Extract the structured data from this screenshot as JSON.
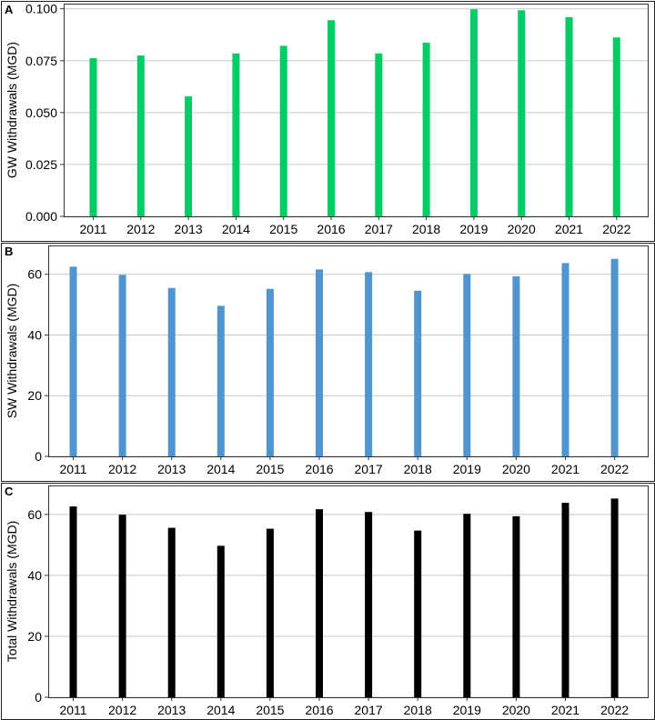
{
  "chart_data": [
    {
      "type": "bar",
      "panel_label": "A",
      "ylabel": "GW Withdrawals (MGD)",
      "categories": [
        "2011",
        "2012",
        "2013",
        "2014",
        "2015",
        "2016",
        "2017",
        "2018",
        "2019",
        "2020",
        "2021",
        "2022"
      ],
      "values": [
        0.0762,
        0.0775,
        0.0578,
        0.0785,
        0.0822,
        0.0945,
        0.0785,
        0.0837,
        0.0998,
        0.0993,
        0.096,
        0.0862
      ],
      "ylim": [
        0,
        0.1025
      ],
      "yticks": [
        0,
        0.025,
        0.05,
        0.075,
        0.1
      ],
      "ytick_labels": [
        "0.000",
        "0.025",
        "0.050",
        "0.075",
        "0.100"
      ],
      "grid": true,
      "color": "#00cc66"
    },
    {
      "type": "bar",
      "panel_label": "B",
      "ylabel": "SW Withdrawals (MGD)",
      "categories": [
        "2011",
        "2012",
        "2013",
        "2014",
        "2015",
        "2016",
        "2017",
        "2018",
        "2019",
        "2020",
        "2021",
        "2022"
      ],
      "values": [
        62.5,
        59.8,
        55.5,
        49.6,
        55.2,
        61.6,
        60.7,
        54.6,
        60.1,
        59.3,
        63.7,
        65.1
      ],
      "ylim": [
        0,
        69.5
      ],
      "yticks": [
        0,
        20,
        40,
        60
      ],
      "ytick_labels": [
        "0",
        "20",
        "40",
        "60"
      ],
      "grid": true,
      "color": "#5095cf"
    },
    {
      "type": "bar",
      "panel_label": "C",
      "ylabel": "Total Withdrawals (MGD)",
      "categories": [
        "2011",
        "2012",
        "2013",
        "2014",
        "2015",
        "2016",
        "2017",
        "2018",
        "2019",
        "2020",
        "2021",
        "2022"
      ],
      "values": [
        62.6,
        59.9,
        55.6,
        49.7,
        55.3,
        61.7,
        60.8,
        54.7,
        60.2,
        59.4,
        63.8,
        65.2
      ],
      "ylim": [
        0,
        69.5
      ],
      "yticks": [
        0,
        20,
        40,
        60
      ],
      "ytick_labels": [
        "0",
        "20",
        "40",
        "60"
      ],
      "grid": true,
      "color": "#000000"
    }
  ]
}
